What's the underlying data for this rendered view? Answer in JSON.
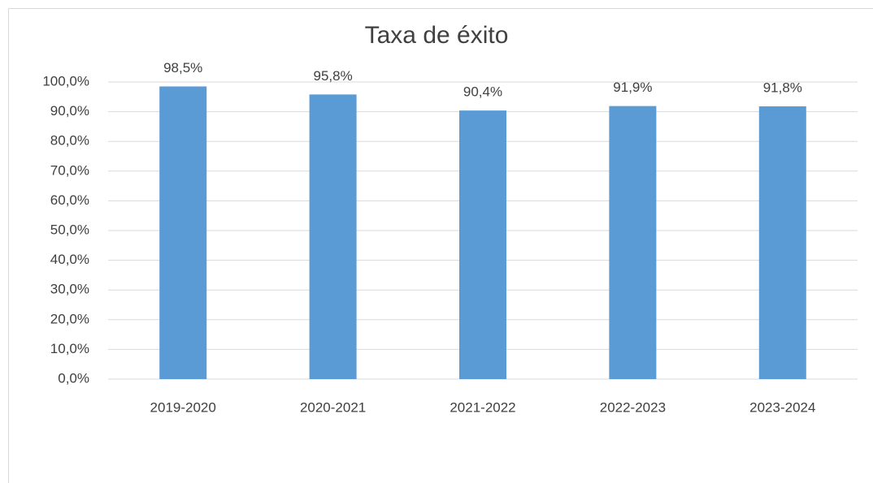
{
  "chart_data": {
    "type": "bar",
    "title": "Taxa de éxito",
    "categories": [
      "2019-2020",
      "2020-2021",
      "2021-2022",
      "2022-2023",
      "2023-2024"
    ],
    "values": [
      98.5,
      95.8,
      90.4,
      91.9,
      91.8
    ],
    "value_labels": [
      "98,5%",
      "95,8%",
      "90,4%",
      "91,9%",
      "91,8%"
    ],
    "color": "#5b9bd5",
    "ylim": [
      0,
      100
    ],
    "yticks": [
      {
        "value": 0,
        "label": "0,0%"
      },
      {
        "value": 10,
        "label": "10,0%"
      },
      {
        "value": 20,
        "label": "20,0%"
      },
      {
        "value": 30,
        "label": "30,0%"
      },
      {
        "value": 40,
        "label": "40,0%"
      },
      {
        "value": 50,
        "label": "50,0%"
      },
      {
        "value": 60,
        "label": "60,0%"
      },
      {
        "value": 70,
        "label": "70,0%"
      },
      {
        "value": 80,
        "label": "80,0%"
      },
      {
        "value": 90,
        "label": "90,0%"
      },
      {
        "value": 100,
        "label": "100,0%"
      }
    ],
    "grid": true
  }
}
